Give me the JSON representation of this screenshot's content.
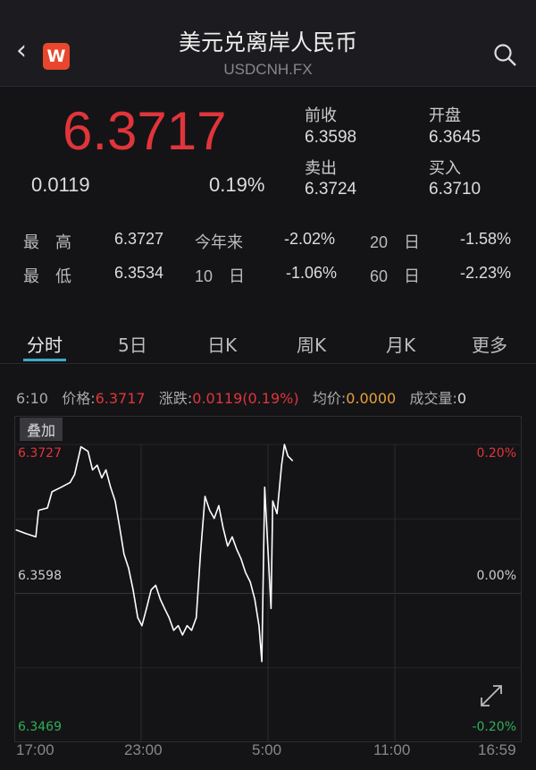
{
  "header": {
    "title": "美元兑离岸人民币",
    "symbol": "USDCNH.FX",
    "back_icon": "chevron-left-icon",
    "logo_letter": "W",
    "search_icon": "search-icon",
    "logo_color": "#e8472e"
  },
  "quote": {
    "price": "6.3717",
    "change": "0.0119",
    "change_pct": "0.19%",
    "prev_close_label": "前收",
    "prev_close": "6.3598",
    "open_label": "开盘",
    "open": "6.3645",
    "sell_label": "卖出",
    "sell": "6.3724",
    "buy_label": "买入",
    "buy": "6.3710"
  },
  "stats": [
    {
      "label": "最　高",
      "value": "6.3727",
      "label2": "今年来",
      "value2": "-2.02%",
      "label3": "20　日",
      "value3": "-1.58%"
    },
    {
      "label": "最　低",
      "value": "6.3534",
      "label2": "10　日",
      "value2": "-1.06%",
      "label3": "60　日",
      "value3": "-2.23%"
    }
  ],
  "tabs": [
    {
      "label": "分时",
      "active": true
    },
    {
      "label": "5日"
    },
    {
      "label": "日K"
    },
    {
      "label": "周K"
    },
    {
      "label": "月K"
    },
    {
      "label": "更多"
    }
  ],
  "info": {
    "time": "6:10",
    "price_label": "价格:",
    "price": "6.3717",
    "change_label": "涨跌:",
    "change": "0.0119(0.19%)",
    "avg_label": "均价:",
    "avg": "0.0000",
    "volume_label": "成交量:",
    "volume": "0"
  },
  "overlay_button": "叠加",
  "chart_data": {
    "type": "line",
    "y_labels": {
      "top": "6.3727",
      "mid": "6.3598",
      "bottom": "6.3469"
    },
    "pct_labels": {
      "top": "0.20%",
      "mid": "0.00%",
      "bottom": "-0.20%"
    },
    "ylim": [
      6.3469,
      6.3727
    ],
    "x_ticks": [
      "17:00",
      "23:00",
      "5:00",
      "11:00",
      "16:59"
    ],
    "xlim": [
      "17:00",
      "16:59"
    ],
    "grid": true,
    "line_color": "#ffffff",
    "points": [
      [
        "17:05",
        6.3653
      ],
      [
        "17:31",
        6.365
      ],
      [
        "18:01",
        6.3647
      ],
      [
        "18:09",
        6.367
      ],
      [
        "18:34",
        6.3672
      ],
      [
        "18:47",
        6.3686
      ],
      [
        "19:13",
        6.369
      ],
      [
        "19:38",
        6.3694
      ],
      [
        "19:51",
        6.3701
      ],
      [
        "20:09",
        6.3725
      ],
      [
        "20:29",
        6.3721
      ],
      [
        "20:42",
        6.3705
      ],
      [
        "20:55",
        6.3709
      ],
      [
        "21:08",
        6.3698
      ],
      [
        "21:20",
        6.3705
      ],
      [
        "21:33",
        6.369
      ],
      [
        "21:46",
        6.3678
      ],
      [
        "21:59",
        6.3655
      ],
      [
        "22:11",
        6.3632
      ],
      [
        "22:24",
        6.362
      ],
      [
        "22:37",
        6.3601
      ],
      [
        "22:50",
        6.3577
      ],
      [
        "23:02",
        6.357
      ],
      [
        "23:15",
        6.3585
      ],
      [
        "23:28",
        6.3601
      ],
      [
        "23:41",
        6.3605
      ],
      [
        "23:54",
        6.3593
      ],
      [
        "0:06",
        6.3585
      ],
      [
        "0:19",
        6.3577
      ],
      [
        "0:32",
        6.3566
      ],
      [
        "0:45",
        6.357
      ],
      [
        "0:57",
        6.3562
      ],
      [
        "1:10",
        6.357
      ],
      [
        "1:23",
        6.3566
      ],
      [
        "1:36",
        6.3577
      ],
      [
        "1:48",
        6.3632
      ],
      [
        "2:01",
        6.3682
      ],
      [
        "2:14",
        6.367
      ],
      [
        "2:27",
        6.3663
      ],
      [
        "2:40",
        6.3674
      ],
      [
        "2:52",
        6.3655
      ],
      [
        "3:05",
        6.3639
      ],
      [
        "3:18",
        6.3647
      ],
      [
        "3:31",
        6.3636
      ],
      [
        "3:43",
        6.3628
      ],
      [
        "3:56",
        6.3616
      ],
      [
        "4:09",
        6.3608
      ],
      [
        "4:22",
        6.3593
      ],
      [
        "4:34",
        6.357
      ],
      [
        "4:42",
        6.3539
      ],
      [
        "4:50",
        6.369
      ],
      [
        "5:00",
        6.3632
      ],
      [
        "5:08",
        6.3585
      ],
      [
        "5:13",
        6.3678
      ],
      [
        "5:25",
        6.3667
      ],
      [
        "5:38",
        6.3709
      ],
      [
        "5:46",
        6.3727
      ],
      [
        "5:56",
        6.3717
      ],
      [
        "6:09",
        6.3713
      ]
    ]
  },
  "expand_icon": "expand-icon"
}
